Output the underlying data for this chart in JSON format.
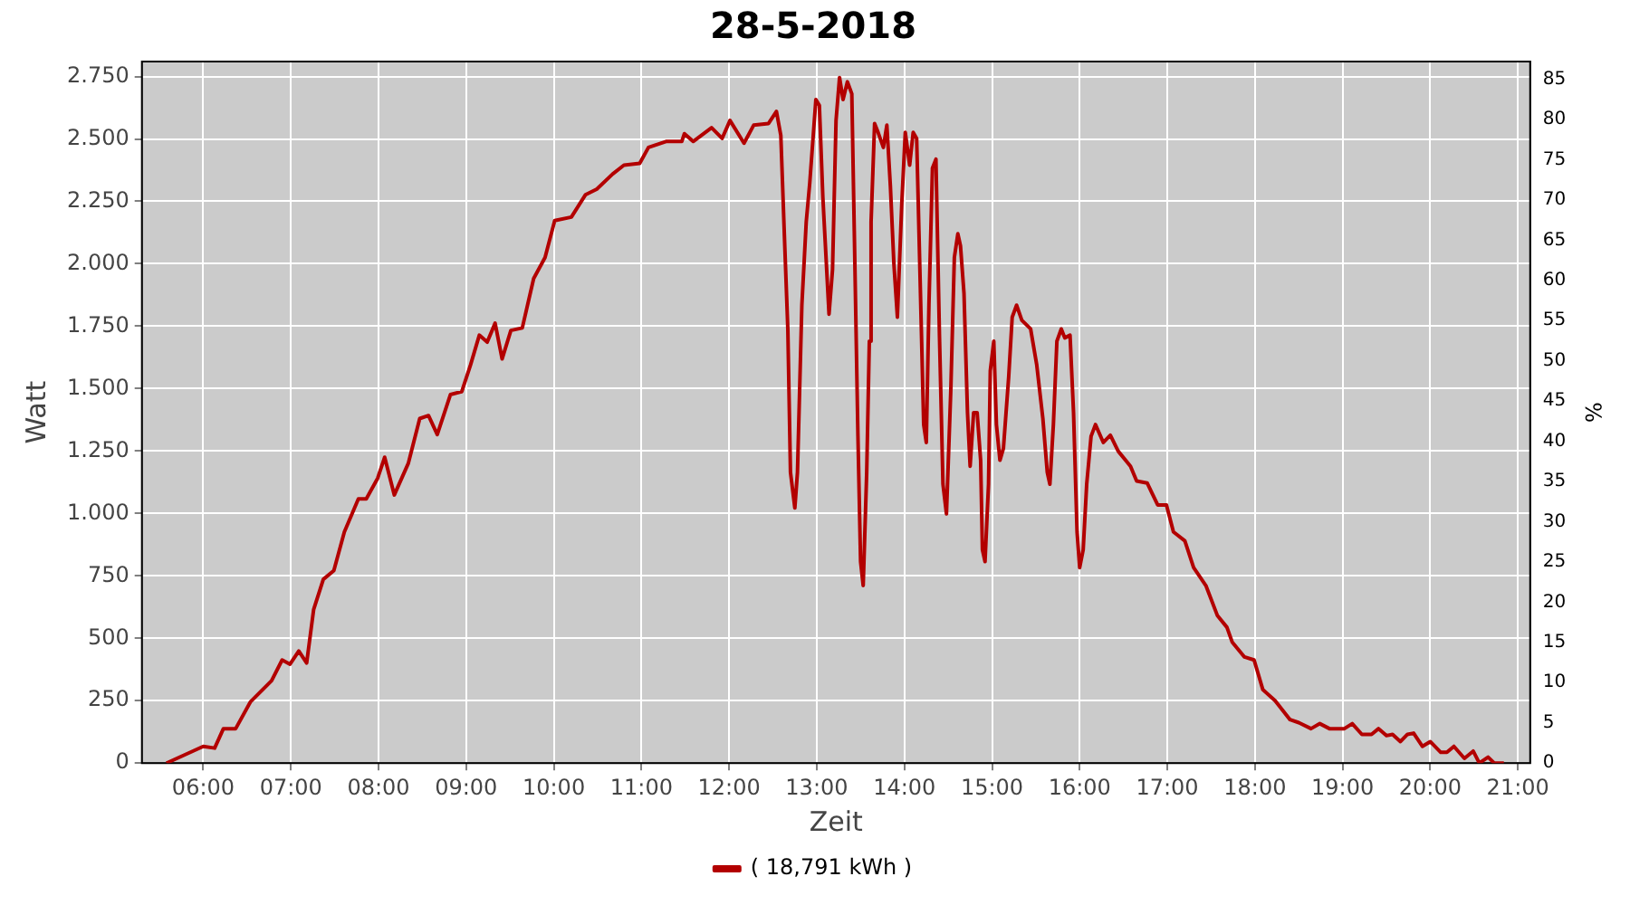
{
  "chart_data": {
    "type": "line",
    "title": "28-5-2018",
    "xlabel": "Zeit",
    "ylabel": "Watt",
    "y2label": "%",
    "xlim": [
      5.3,
      21.14
    ],
    "xticks": [
      {
        "value": 6,
        "label": "06:00"
      },
      {
        "value": 7,
        "label": "07:00"
      },
      {
        "value": 8,
        "label": "08:00"
      },
      {
        "value": 9,
        "label": "09:00"
      },
      {
        "value": 10,
        "label": "10:00"
      },
      {
        "value": 11,
        "label": "11:00"
      },
      {
        "value": 12,
        "label": "12:00"
      },
      {
        "value": 13,
        "label": "13:00"
      },
      {
        "value": 14,
        "label": "14:00"
      },
      {
        "value": 15,
        "label": "15:00"
      },
      {
        "value": 16,
        "label": "16:00"
      },
      {
        "value": 17,
        "label": "17:00"
      },
      {
        "value": 18,
        "label": "18:00"
      },
      {
        "value": 19,
        "label": "19:00"
      },
      {
        "value": 20,
        "label": "20:00"
      },
      {
        "value": 21,
        "label": "21:00"
      }
    ],
    "ylim": [
      0,
      2810
    ],
    "yticks": [
      0,
      250,
      500,
      750,
      {
        "value": 1000,
        "label": "1.000"
      },
      {
        "value": 1250,
        "label": "1.250"
      },
      {
        "value": 1500,
        "label": "1.500"
      },
      {
        "value": 1750,
        "label": "1.750"
      },
      {
        "value": 2000,
        "label": "2.000"
      },
      {
        "value": 2250,
        "label": "2.250"
      },
      {
        "value": 2500,
        "label": "2.500"
      },
      {
        "value": 2750,
        "label": "2.750"
      }
    ],
    "y2lim": [
      0,
      87.2
    ],
    "y2ticks": [
      0,
      5,
      10,
      15,
      20,
      25,
      30,
      35,
      40,
      45,
      50,
      55,
      60,
      65,
      70,
      75,
      80,
      85
    ],
    "grid": true,
    "legend": "bottom",
    "marker": "none",
    "line_style": "solid",
    "series": [
      {
        "name": "( 18,791 kWh )",
        "color": "#b30000",
        "x": [
          5.58,
          6.0,
          6.13,
          6.23,
          6.37,
          6.54,
          6.78,
          6.9,
          6.99,
          7.09,
          7.18,
          7.26,
          7.37,
          7.49,
          7.61,
          7.77,
          7.86,
          7.99,
          8.07,
          8.18,
          8.34,
          8.47,
          8.57,
          8.67,
          8.82,
          8.95,
          9.05,
          9.15,
          9.24,
          9.33,
          9.41,
          9.51,
          9.64,
          9.77,
          9.9,
          10.01,
          10.2,
          10.36,
          10.49,
          10.67,
          10.8,
          10.98,
          11.08,
          11.28,
          11.46,
          11.49,
          11.59,
          11.8,
          11.92,
          12.01,
          12.17,
          12.28,
          12.45,
          12.54,
          12.59,
          12.63,
          12.67,
          12.7,
          12.75,
          12.78,
          12.83,
          12.88,
          12.92,
          12.99,
          13.03,
          13.07,
          13.14,
          13.18,
          13.22,
          13.26,
          13.3,
          13.35,
          13.4,
          13.43,
          13.47,
          13.5,
          13.53,
          13.57,
          13.6,
          13.62,
          13.66,
          13.7,
          13.76,
          13.8,
          13.84,
          13.88,
          13.92,
          13.97,
          14.01,
          14.06,
          14.1,
          14.14,
          14.19,
          14.22,
          14.25,
          14.28,
          14.32,
          14.36,
          14.4,
          14.44,
          14.48,
          14.53,
          14.57,
          14.61,
          14.64,
          14.68,
          14.72,
          14.75,
          14.79,
          14.83,
          14.87,
          14.89,
          14.92,
          14.96,
          14.98,
          15.02,
          15.05,
          15.09,
          15.13,
          15.19,
          15.23,
          15.28,
          15.34,
          15.44,
          15.51,
          15.58,
          15.63,
          15.66,
          15.7,
          15.74,
          15.79,
          15.83,
          15.89,
          15.93,
          15.97,
          16.0,
          16.04,
          16.08,
          16.13,
          16.18,
          16.27,
          16.35,
          16.44,
          16.58,
          16.65,
          16.77,
          16.89,
          16.99,
          17.07,
          17.2,
          17.3,
          17.44,
          17.57,
          17.68,
          17.74,
          17.88,
          17.99,
          18.09,
          18.23,
          18.4,
          18.5,
          18.64,
          18.74,
          18.85,
          19.02,
          19.11,
          19.22,
          19.33,
          19.41,
          19.5,
          19.57,
          19.66,
          19.74,
          19.81,
          19.91,
          20.0,
          20.12,
          20.19,
          20.27,
          20.39,
          20.49,
          20.56,
          20.66,
          20.73,
          20.84
        ],
        "values": [
          0,
          67,
          60,
          138,
          138,
          246,
          330,
          413,
          396,
          449,
          401,
          616,
          736,
          771,
          926,
          1058,
          1058,
          1141,
          1225,
          1074,
          1201,
          1380,
          1392,
          1316,
          1476,
          1488,
          1595,
          1714,
          1686,
          1762,
          1619,
          1733,
          1743,
          1941,
          2025,
          2173,
          2187,
          2276,
          2299,
          2359,
          2395,
          2402,
          2466,
          2490,
          2490,
          2521,
          2490,
          2545,
          2502,
          2574,
          2483,
          2555,
          2562,
          2610,
          2514,
          2120,
          1739,
          1165,
          1022,
          1165,
          1834,
          2168,
          2323,
          2658,
          2634,
          2264,
          1798,
          1977,
          2574,
          2746,
          2658,
          2729,
          2681,
          2097,
          1309,
          807,
          711,
          1165,
          1690,
          2168,
          2562,
          2526,
          2466,
          2555,
          2312,
          2001,
          1786,
          2240,
          2526,
          2395,
          2526,
          2502,
          1786,
          1356,
          1284,
          1834,
          2383,
          2419,
          1714,
          1117,
          998,
          1499,
          2025,
          2120,
          2072,
          1882,
          1404,
          1189,
          1404,
          1404,
          1213,
          855,
          807,
          1117,
          1571,
          1690,
          1356,
          1213,
          1261,
          1547,
          1786,
          1834,
          1774,
          1739,
          1595,
          1380,
          1165,
          1117,
          1356,
          1690,
          1739,
          1703,
          1714,
          1404,
          926,
          783,
          855,
          1117,
          1309,
          1356,
          1284,
          1313,
          1249,
          1189,
          1130,
          1122,
          1034,
          1034,
          926,
          890,
          783,
          711,
          592,
          544,
          485,
          425,
          413,
          294,
          250,
          174,
          162,
          138,
          158,
          138,
          138,
          158,
          115,
          115,
          138,
          110,
          115,
          86,
          115,
          120,
          67,
          86,
          43,
          43,
          67,
          19,
          48,
          0,
          24,
          0,
          0
        ]
      }
    ]
  }
}
